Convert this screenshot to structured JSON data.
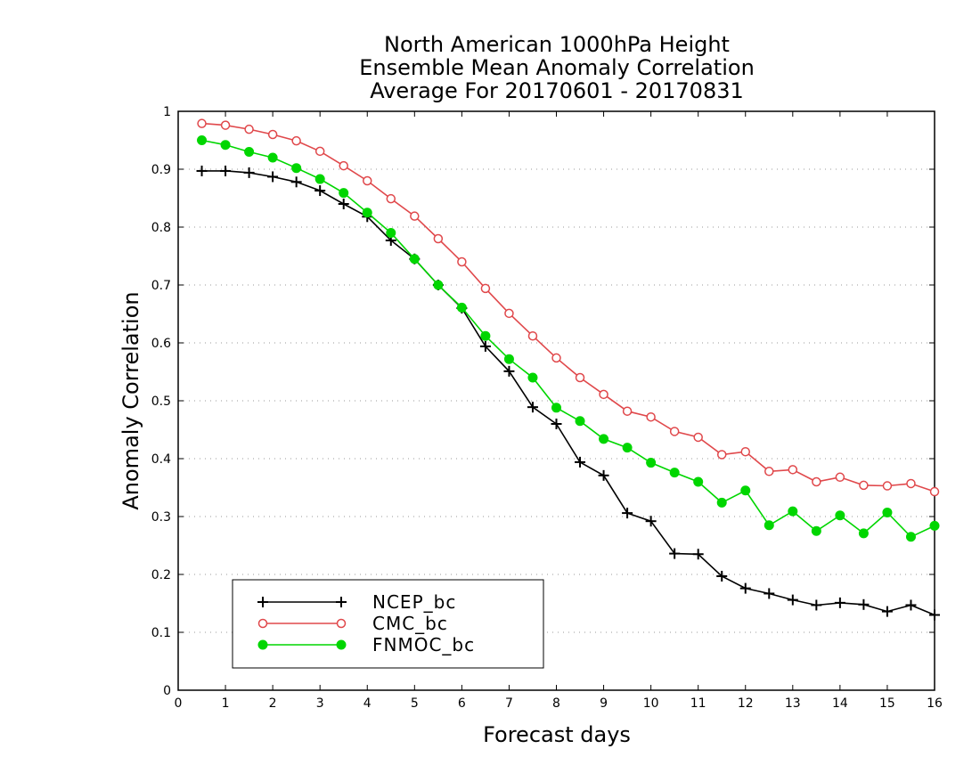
{
  "chart_data": {
    "type": "line",
    "title": [
      "North American 1000hPa Height",
      "Ensemble Mean Anomaly Correlation",
      "Average For 20170601 - 20170831"
    ],
    "xlabel": "Forecast days",
    "ylabel": "Anomaly Correlation",
    "xlim": [
      0,
      16
    ],
    "ylim": [
      0,
      1
    ],
    "xticks": [
      "0",
      "1",
      "2",
      "3",
      "4",
      "5",
      "6",
      "7",
      "8",
      "9",
      "10",
      "11",
      "12",
      "13",
      "14",
      "15",
      "16"
    ],
    "yticks": [
      "0",
      "0.1",
      "0.2",
      "0.3",
      "0.4",
      "0.5",
      "0.6",
      "0.7",
      "0.8",
      "0.9",
      "1"
    ],
    "grid": "horizontal dotted",
    "legend_position": "bottom-left",
    "x": [
      0.5,
      1,
      1.5,
      2,
      2.5,
      3,
      3.5,
      4,
      4.5,
      5,
      5.5,
      6,
      6.5,
      7,
      7.5,
      8,
      8.5,
      9,
      9.5,
      10,
      10.5,
      11,
      11.5,
      12,
      12.5,
      13,
      13.5,
      14,
      14.5,
      15,
      15.5,
      16
    ],
    "series": [
      {
        "name": "NCEP_bc",
        "color": "#000000",
        "marker": "plus",
        "values": [
          0.897,
          0.897,
          0.894,
          0.887,
          0.878,
          0.863,
          0.84,
          0.818,
          0.777,
          0.745,
          0.7,
          0.66,
          0.594,
          0.551,
          0.489,
          0.46,
          0.394,
          0.371,
          0.306,
          0.292,
          0.236,
          0.235,
          0.197,
          0.176,
          0.167,
          0.156,
          0.147,
          0.151,
          0.148,
          0.136,
          0.147,
          0.13
        ]
      },
      {
        "name": "CMC_bc",
        "color": "#e0484b",
        "marker": "open-circle",
        "values": [
          0.979,
          0.976,
          0.969,
          0.96,
          0.949,
          0.931,
          0.906,
          0.88,
          0.849,
          0.819,
          0.78,
          0.74,
          0.694,
          0.651,
          0.612,
          0.574,
          0.54,
          0.511,
          0.482,
          0.472,
          0.447,
          0.437,
          0.407,
          0.412,
          0.378,
          0.381,
          0.36,
          0.368,
          0.354,
          0.353,
          0.357,
          0.343
        ]
      },
      {
        "name": "FNMOC_bc",
        "color": "#00d600",
        "marker": "filled-circle",
        "values": [
          0.95,
          0.942,
          0.93,
          0.92,
          0.902,
          0.883,
          0.859,
          0.825,
          0.79,
          0.745,
          0.7,
          0.661,
          0.612,
          0.572,
          0.54,
          0.488,
          0.465,
          0.434,
          0.419,
          0.393,
          0.376,
          0.36,
          0.324,
          0.345,
          0.285,
          0.309,
          0.275,
          0.302,
          0.271,
          0.307,
          0.265,
          0.284
        ]
      }
    ]
  }
}
